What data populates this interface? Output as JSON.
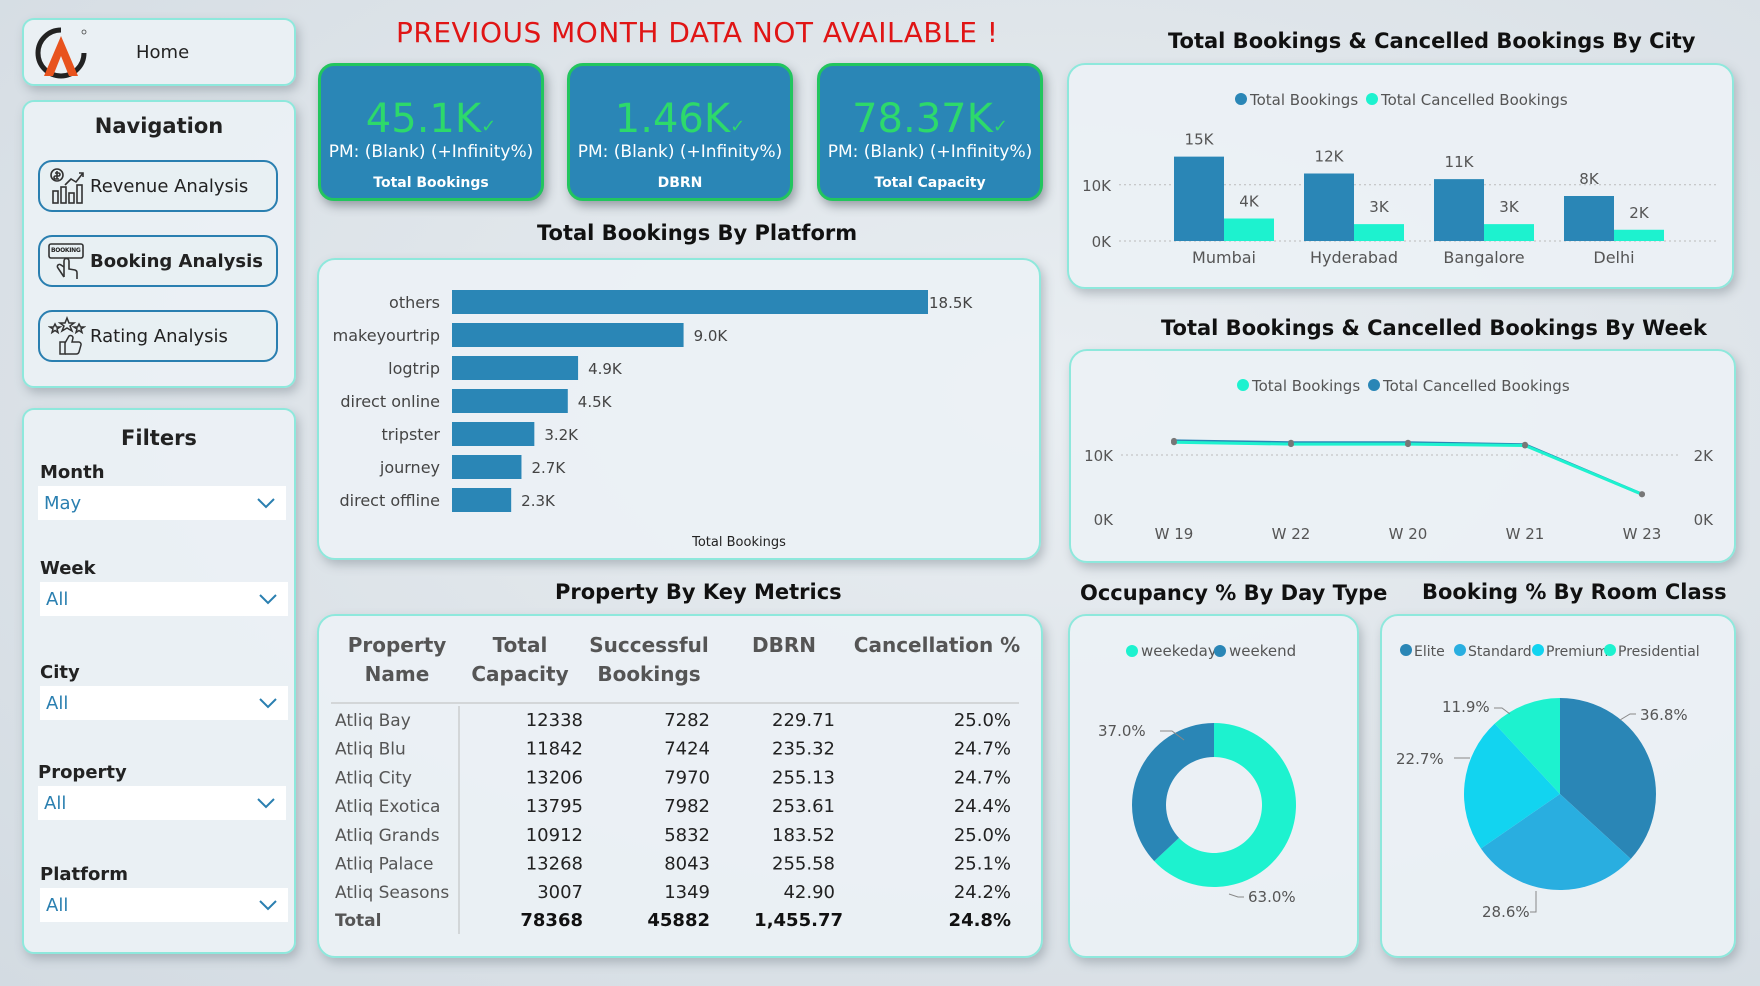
{
  "home": {
    "label": "Home"
  },
  "navigation": {
    "title": "Navigation",
    "items": [
      {
        "label": "Revenue Analysis",
        "icon": "revenue-chart-icon"
      },
      {
        "label": "Booking Analysis",
        "icon": "booking-hand-icon",
        "badge": "BOOKING"
      },
      {
        "label": "Rating Analysis",
        "icon": "rating-stars-icon"
      }
    ]
  },
  "filters": {
    "title": "Filters",
    "items": [
      {
        "label": "Month",
        "value": "May"
      },
      {
        "label": "Week",
        "value": "All"
      },
      {
        "label": "City",
        "value": "All"
      },
      {
        "label": "Property",
        "value": "All"
      },
      {
        "label": "Platform",
        "value": "All"
      }
    ]
  },
  "warning": "PREVIOUS MONTH DATA NOT AVAILABLE !",
  "kpis": [
    {
      "value": "45.1K",
      "pm": "PM: (Blank) (+Infinity%)",
      "label": "Total Bookings"
    },
    {
      "value": "1.46K",
      "pm": "PM: (Blank) (+Infinity%)",
      "label": "DBRN"
    },
    {
      "value": "78.37K",
      "pm": "PM: (Blank) (+Infinity%)",
      "label": "Total Capacity"
    }
  ],
  "colors": {
    "primary": "#2a86b6",
    "secondary": "#1df2cf",
    "accent_green": "#2dd96b",
    "warning": "#e01515",
    "border": "#8ee8dc"
  },
  "chart_data": [
    {
      "id": "platform",
      "type": "bar",
      "orientation": "horizontal",
      "title": "Total Bookings By Platform",
      "xlabel": "Total Bookings",
      "categories": [
        "others",
        "makeyourtrip",
        "logtrip",
        "direct online",
        "tripster",
        "journey",
        "direct offline"
      ],
      "values": [
        18500,
        9000,
        4900,
        4500,
        3200,
        2700,
        2300
      ],
      "labels": [
        "18.5K",
        "9.0K",
        "4.9K",
        "4.5K",
        "3.2K",
        "2.7K",
        "2.3K"
      ]
    },
    {
      "id": "city",
      "type": "bar",
      "title": "Total Bookings & Cancelled Bookings By City",
      "categories": [
        "Mumbai",
        "Hyderabad",
        "Bangalore",
        "Delhi"
      ],
      "series": [
        {
          "name": "Total Bookings",
          "values": [
            15000,
            12000,
            11000,
            8000
          ],
          "labels": [
            "15K",
            "12K",
            "11K",
            "8K"
          ]
        },
        {
          "name": "Total Cancelled Bookings",
          "values": [
            4000,
            3000,
            3000,
            2000
          ],
          "labels": [
            "4K",
            "3K",
            "3K",
            "2K"
          ]
        }
      ],
      "yticks": [
        "0K",
        "10K"
      ],
      "ylim": [
        0,
        16000
      ],
      "legend": "top"
    },
    {
      "id": "week",
      "type": "line",
      "title": "Total Bookings & Cancelled Bookings By Week",
      "categories": [
        "W 19",
        "W 22",
        "W 20",
        "W 21",
        "W 23"
      ],
      "series": [
        {
          "name": "Total Bookings",
          "axis": "left",
          "values": [
            11200,
            10900,
            10900,
            10700,
            3200
          ]
        },
        {
          "name": "Total Cancelled Bookings",
          "axis": "right",
          "values": [
            2850,
            2780,
            2780,
            2700,
            800
          ]
        }
      ],
      "yticks_left": [
        "0K",
        "10K"
      ],
      "yticks_right": [
        "0K",
        "2K"
      ],
      "ylim_left": [
        0,
        16000
      ],
      "ylim_right": [
        0,
        4000
      ],
      "legend": "top"
    },
    {
      "id": "occupancy",
      "type": "pie",
      "donut": true,
      "title": "Occupancy % By Day Type",
      "categories": [
        "weekeday",
        "weekend"
      ],
      "values": [
        63.0,
        37.0
      ],
      "labels": [
        "63.0%",
        "37.0%"
      ]
    },
    {
      "id": "roomclass",
      "type": "pie",
      "title": "Booking % By Room Class",
      "categories": [
        "Elite",
        "Standard",
        "Premium",
        "Presidential"
      ],
      "values": [
        36.8,
        28.6,
        22.7,
        11.9
      ],
      "labels": [
        "36.8%",
        "28.6%",
        "22.7%",
        "11.9%"
      ]
    },
    {
      "id": "property",
      "type": "table",
      "title": "Property By Key Metrics",
      "headers": [
        [
          "Property",
          "Name"
        ],
        [
          "Total",
          "Capacity"
        ],
        [
          "Successful",
          "Bookings"
        ],
        [
          "DBRN",
          ""
        ],
        [
          "Cancellation %",
          ""
        ]
      ],
      "rows": [
        [
          "Atliq Bay",
          "12338",
          "7282",
          "229.71",
          "25.0%"
        ],
        [
          "Atliq Blu",
          "11842",
          "7424",
          "235.32",
          "24.7%"
        ],
        [
          "Atliq City",
          "13206",
          "7970",
          "255.13",
          "24.7%"
        ],
        [
          "Atliq Exotica",
          "13795",
          "7982",
          "253.61",
          "24.4%"
        ],
        [
          "Atliq Grands",
          "10912",
          "5832",
          "183.52",
          "25.0%"
        ],
        [
          "Atliq Palace",
          "13268",
          "8043",
          "255.58",
          "25.1%"
        ],
        [
          "Atliq Seasons",
          "3007",
          "1349",
          "42.90",
          "24.2%"
        ]
      ],
      "total": [
        "Total",
        "78368",
        "45882",
        "1,455.77",
        "24.8%"
      ]
    }
  ]
}
